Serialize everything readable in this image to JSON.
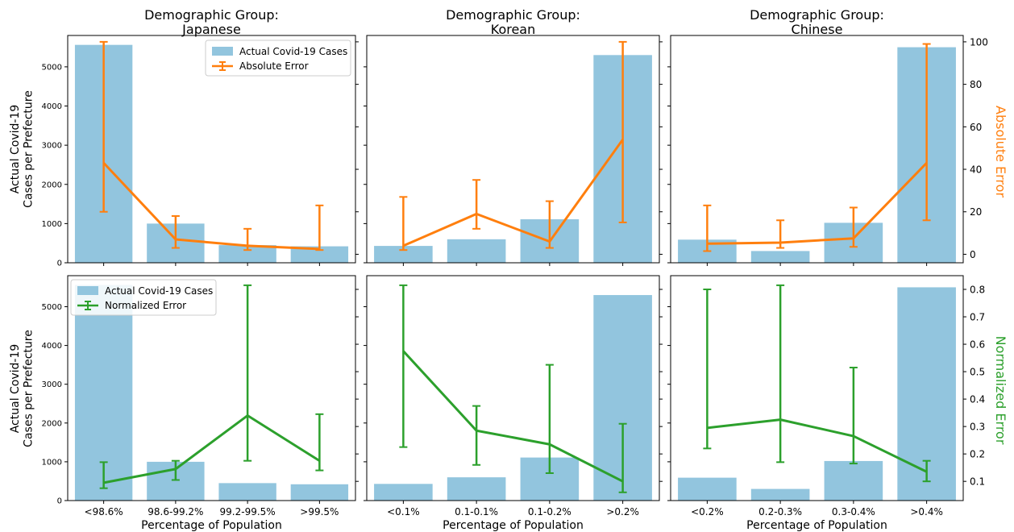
{
  "figure": {
    "shared_ylabel": "Actual Covid-19 Cases per Prefecture",
    "shared_xlabel": "Percentage of Population",
    "right_label_top": "Absolute Error",
    "right_label_bottom": "Normalized Error",
    "colors": {
      "bar": "#92c5de",
      "abs": "#ff7f0e",
      "norm": "#2ca02c"
    }
  },
  "chart_data": [
    {
      "type": "bar",
      "panel": "top-left",
      "title_line1": "Demographic Group:",
      "title_line2": "Japanese",
      "categories": [
        "<98.6%",
        "98.6-99.2%",
        "99.2-99.5%",
        ">99.5%"
      ],
      "cases": [
        5560,
        1000,
        450,
        420
      ],
      "ylim_left": [
        0,
        5800
      ],
      "error_name": "Absolute Error",
      "error_mean": [
        43,
        7,
        4,
        2.5
      ],
      "error_low": [
        20,
        3,
        2,
        2
      ],
      "error_high": [
        100,
        18,
        12,
        23
      ],
      "ylim_right": [
        -4,
        103
      ],
      "legend": [
        "Actual Covid-19 Cases",
        "Absolute Error"
      ]
    },
    {
      "type": "bar",
      "panel": "top-middle",
      "title_line1": "Demographic Group:",
      "title_line2": "Korean",
      "categories": [
        "<0.1%",
        "0.1-0.1%",
        "0.1-0.2%",
        ">0.2%"
      ],
      "cases": [
        430,
        600,
        1110,
        5300
      ],
      "ylim_left": [
        0,
        5800
      ],
      "error_name": "Absolute Error",
      "error_mean": [
        4,
        19,
        6,
        54
      ],
      "error_low": [
        2,
        12,
        3,
        15
      ],
      "error_high": [
        27,
        35,
        25,
        100
      ],
      "ylim_right": [
        -4,
        103
      ]
    },
    {
      "type": "bar",
      "panel": "top-right",
      "title_line1": "Demographic Group:",
      "title_line2": "Chinese",
      "categories": [
        "<0.2%",
        "0.2-0.3%",
        "0.3-0.4%",
        ">0.4%"
      ],
      "cases": [
        590,
        300,
        1020,
        5500
      ],
      "ylim_left": [
        0,
        5800
      ],
      "error_name": "Absolute Error",
      "error_mean": [
        5,
        5.5,
        7.5,
        43
      ],
      "error_low": [
        1.5,
        3,
        3.5,
        16
      ],
      "error_high": [
        23,
        16,
        22,
        99
      ],
      "ylim_right": [
        -4,
        103
      ],
      "right_ticks": [
        0,
        20,
        40,
        60,
        80,
        100
      ]
    },
    {
      "type": "bar",
      "panel": "bottom-left",
      "categories": [
        "<98.6%",
        "98.6-99.2%",
        "99.2-99.5%",
        ">99.5%"
      ],
      "cases": [
        5560,
        1000,
        450,
        420
      ],
      "ylim_left": [
        0,
        5800
      ],
      "error_name": "Normalized Error",
      "error_mean": [
        0.095,
        0.145,
        0.34,
        0.175
      ],
      "error_low": [
        0.075,
        0.105,
        0.175,
        0.14
      ],
      "error_high": [
        0.17,
        0.175,
        0.815,
        0.345
      ],
      "ylim_right": [
        0.03,
        0.85
      ],
      "legend": [
        "Actual Covid-19 Cases",
        "Normalized Error"
      ]
    },
    {
      "type": "bar",
      "panel": "bottom-middle",
      "categories": [
        "<0.1%",
        "0.1-0.1%",
        "0.1-0.2%",
        ">0.2%"
      ],
      "cases": [
        430,
        600,
        1110,
        5300
      ],
      "ylim_left": [
        0,
        5800
      ],
      "error_name": "Normalized Error",
      "error_mean": [
        0.575,
        0.285,
        0.235,
        0.1
      ],
      "error_low": [
        0.225,
        0.16,
        0.13,
        0.06
      ],
      "error_high": [
        0.815,
        0.375,
        0.525,
        0.31
      ],
      "ylim_right": [
        0.03,
        0.85
      ]
    },
    {
      "type": "bar",
      "panel": "bottom-right",
      "categories": [
        "<0.2%",
        "0.2-0.3%",
        "0.3-0.4%",
        ">0.4%"
      ],
      "cases": [
        590,
        300,
        1020,
        5500
      ],
      "ylim_left": [
        0,
        5800
      ],
      "error_name": "Normalized Error",
      "error_mean": [
        0.295,
        0.325,
        0.265,
        0.135
      ],
      "error_low": [
        0.22,
        0.17,
        0.165,
        0.1
      ],
      "error_high": [
        0.8,
        0.815,
        0.515,
        0.175
      ],
      "ylim_right": [
        0.03,
        0.85
      ],
      "right_ticks": [
        0.1,
        0.2,
        0.3,
        0.4,
        0.5,
        0.6,
        0.7,
        0.8
      ]
    }
  ]
}
